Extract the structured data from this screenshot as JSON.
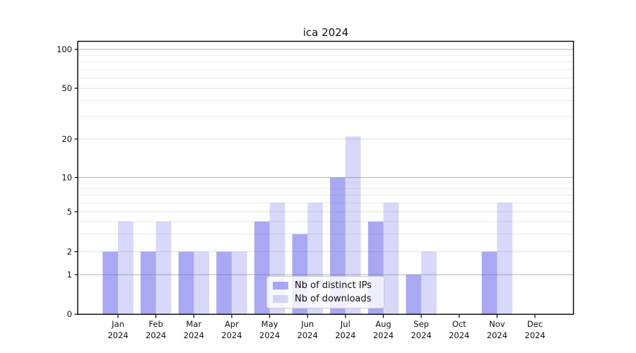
{
  "title": "ica 2024",
  "chart_data": {
    "type": "bar",
    "title": "ica 2024",
    "categories": [
      "Jan 2024",
      "Feb 2024",
      "Mar 2024",
      "Apr 2024",
      "May 2024",
      "Jun 2024",
      "Jul 2024",
      "Aug 2024",
      "Sep 2024",
      "Oct 2024",
      "Nov 2024",
      "Dec 2024"
    ],
    "series": [
      {
        "name": "Nb of distinct IPs",
        "base_color": "#6262ea",
        "opacity": 0.55,
        "effective_color": "#a8a8f1",
        "values": [
          2,
          2,
          2,
          2,
          4,
          3,
          10,
          4,
          1,
          0,
          2,
          0
        ]
      },
      {
        "name": "Nb of downloads",
        "base_color": "#6262ea",
        "opacity": 0.25,
        "effective_color": "#d8d8f8",
        "values": [
          4,
          4,
          2,
          2,
          6,
          6,
          21,
          6,
          2,
          0,
          6,
          0
        ]
      }
    ],
    "yscale": "symlog",
    "ylim": [
      0,
      115
    ],
    "xlabel": "",
    "ylabel": "",
    "y_tick_labels": [
      "100",
      "50",
      "20",
      "10",
      "5",
      "2",
      "1",
      "0"
    ],
    "y_tick_values": [
      100,
      50,
      20,
      10,
      5,
      2,
      1,
      0
    ],
    "y_major_gridlines": [
      1,
      10,
      100
    ],
    "y_labeled_minor_gridlines": [
      2,
      5,
      20,
      50
    ],
    "y_unlabeled_minor_gridlines": [
      3,
      4,
      6,
      7,
      8,
      9,
      30,
      40,
      60,
      70,
      80,
      90
    ],
    "grid": true,
    "legend": {
      "position": "lower center",
      "entries": [
        "Nb of distinct IPs",
        "Nb of downloads"
      ]
    }
  },
  "colors": {
    "background": "#ffffff",
    "axis": "#000000",
    "text": "#111111",
    "grid_major": "#b2b2b2",
    "grid_labeled_minor": "#e0e0e0",
    "grid_minor": "#eaeaea",
    "legend_border": "#cccccc",
    "bar_dark_effective": "#a8a8f1",
    "bar_light_effective": "#d8d8f8"
  }
}
